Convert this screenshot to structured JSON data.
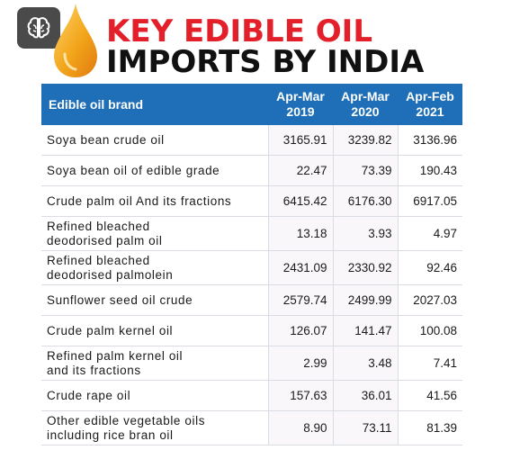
{
  "header": {
    "title_line1": "KEY EDIBLE OIL",
    "title_line2": "IMPORTS BY INDIA",
    "brain_icon": "brain-icon",
    "drop_icon": "oil-drop-icon",
    "colors": {
      "title_red": "#e3202a",
      "header_blue": "#1e6fb8",
      "drop_orange": "#f2a51a"
    }
  },
  "table": {
    "columns": [
      {
        "label": "Edible oil brand"
      },
      {
        "line1": "Apr-Mar",
        "line2": "2019"
      },
      {
        "line1": "Apr-Mar",
        "line2": "2020"
      },
      {
        "line1": "Apr-Feb",
        "line2": "2021"
      }
    ],
    "rows": [
      {
        "name1": "Soya bean crude oil",
        "name2": "",
        "v2019": "3165.91",
        "v2020": "3239.82",
        "v2021": "3136.96"
      },
      {
        "name1": "Soya bean oil of edible grade",
        "name2": "",
        "v2019": "22.47",
        "v2020": "73.39",
        "v2021": "190.43"
      },
      {
        "name1": "Crude palm oil And its fractions",
        "name2": "",
        "v2019": "6415.42",
        "v2020": "6176.30",
        "v2021": "6917.05"
      },
      {
        "name1": "Refined bleached",
        "name2": "deodorised palm oil",
        "v2019": "13.18",
        "v2020": "3.93",
        "v2021": "4.97"
      },
      {
        "name1": "Refined bleached",
        "name2": "deodorised palmolein",
        "v2019": "2431.09",
        "v2020": "2330.92",
        "v2021": "92.46"
      },
      {
        "name1": "Sunflower seed oil crude",
        "name2": "",
        "v2019": "2579.74",
        "v2020": "2499.99",
        "v2021": "2027.03"
      },
      {
        "name1": "Crude palm kernel oil",
        "name2": "",
        "v2019": "126.07",
        "v2020": "141.47",
        "v2021": "100.08"
      },
      {
        "name1": "Refined palm kernel oil",
        "name2": "and its fractions",
        "v2019": "2.99",
        "v2020": "3.48",
        "v2021": "7.41"
      },
      {
        "name1": "Crude rape oil",
        "name2": "",
        "v2019": "157.63",
        "v2020": "36.01",
        "v2021": "41.56"
      },
      {
        "name1": "Other edible vegetable oils",
        "name2": "including rice bran oil",
        "v2019": "8.90",
        "v2020": "73.11",
        "v2021": "81.39"
      }
    ]
  }
}
